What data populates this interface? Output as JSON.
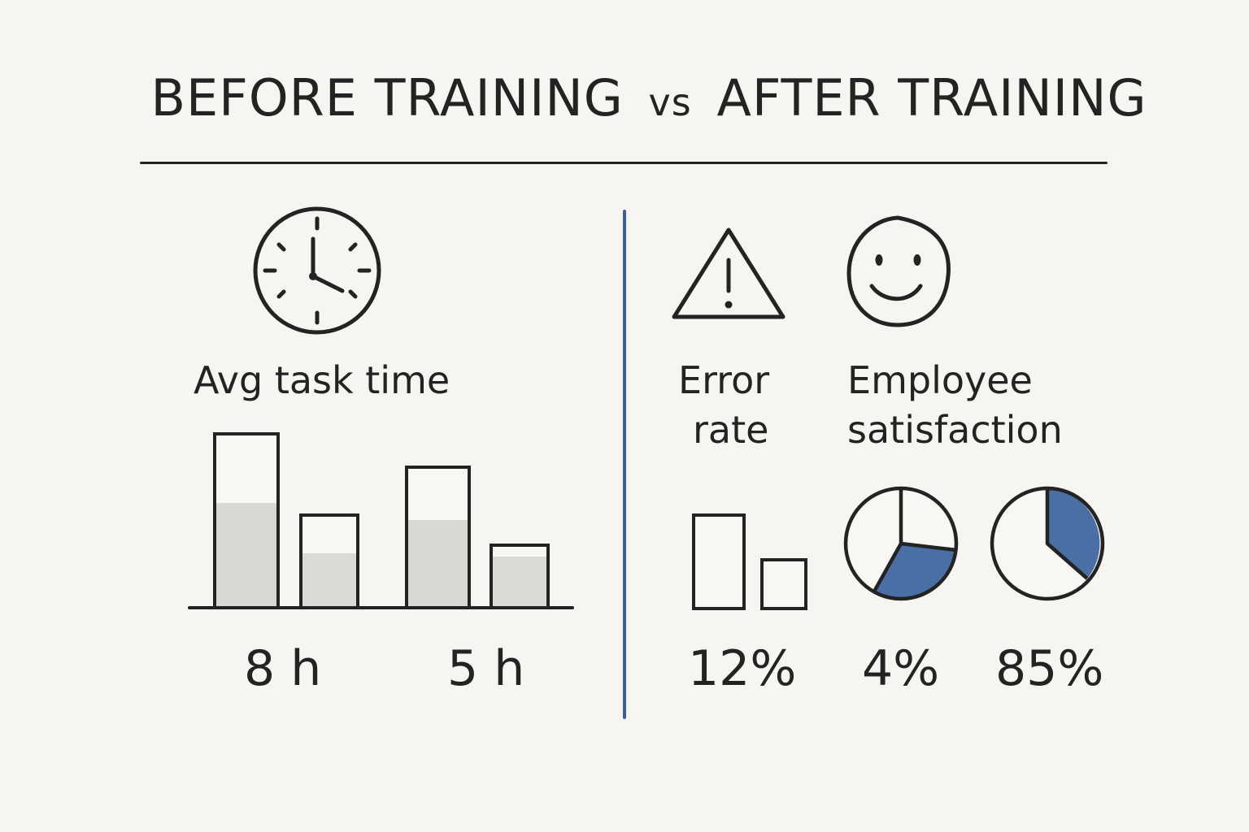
{
  "title": {
    "before": "BEFORE TRAINING",
    "vs": "vs",
    "after": "AFTER TRAINING"
  },
  "left_panel": {
    "icon": "clock-icon",
    "label": "Avg task time",
    "values": [
      "8 h",
      "5 h"
    ]
  },
  "right_panel": {
    "error_icon": "warning-triangle-icon",
    "satisfaction_icon": "smiley-face-icon",
    "error_label_line1": "Error",
    "error_label_line2": "rate",
    "satisfaction_label_line1": "Employee",
    "satisfaction_label_line2": "satisfaction",
    "values": [
      "12%",
      "4%",
      "85%"
    ]
  },
  "colors": {
    "background": "#f6f5f1",
    "ink": "#232323",
    "accent_blue": "#4a6fa5",
    "divider_blue": "#3e5f98",
    "bar_fill_gray": "#d8d7d3"
  }
}
